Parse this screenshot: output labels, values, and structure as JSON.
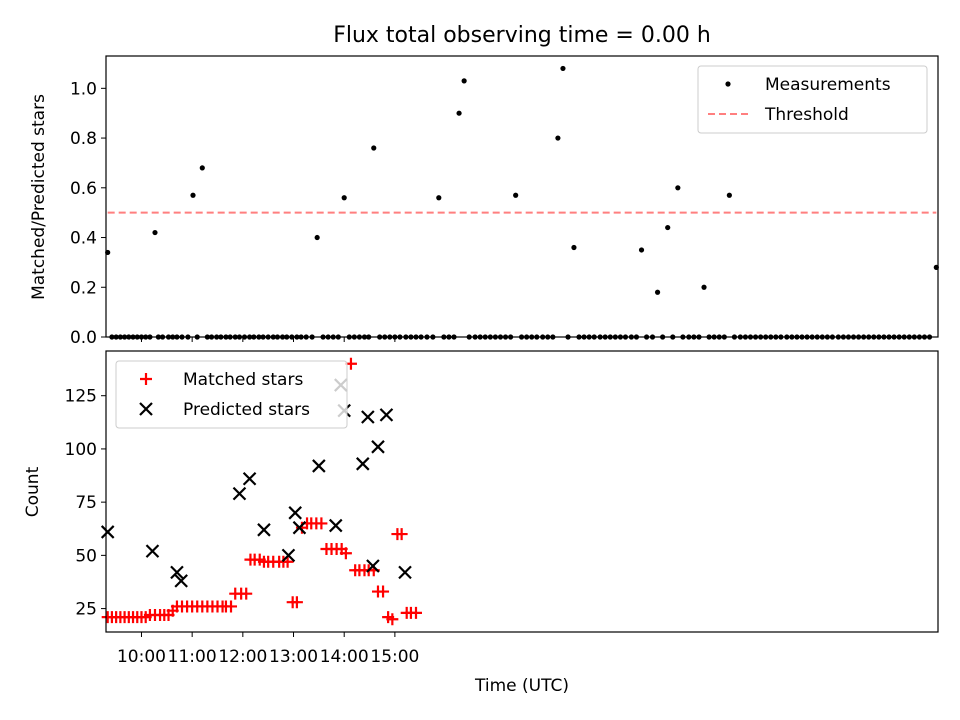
{
  "chart_data": [
    {
      "type": "scatter",
      "title": "Flux total observing time = 0.00 h",
      "xlabel": "",
      "ylabel": "Matched/Predicted stars",
      "xlim": [
        558,
        1543
      ],
      "ylim": [
        0,
        1.13
      ],
      "yticks": [
        0.0,
        0.2,
        0.4,
        0.6,
        0.8,
        1.0
      ],
      "ytick_labels": [
        "0.0",
        "0.2",
        "0.4",
        "0.6",
        "0.8",
        "1.0"
      ],
      "threshold": {
        "name": "Threshold",
        "value": 0.5,
        "x_range": [
          560,
          1541
        ],
        "color": "#ff7f7f"
      },
      "legend": {
        "position": "top-right",
        "entries": [
          "Measurements",
          "Threshold"
        ]
      },
      "series": [
        {
          "name": "Measurements",
          "color": "#000000",
          "x": [
            560,
            565,
            570,
            575,
            580,
            585,
            590,
            595,
            600,
            605,
            610,
            616,
            620,
            625,
            632,
            637,
            642,
            648,
            655,
            661,
            666,
            672,
            678,
            683,
            689,
            694,
            700,
            705,
            711,
            716,
            722,
            728,
            733,
            739,
            744,
            750,
            756,
            761,
            767,
            772,
            778,
            784,
            789,
            795,
            802,
            808,
            815,
            821,
            827,
            833,
            840,
            846,
            852,
            858,
            864,
            869,
            875,
            882,
            888,
            894,
            900,
            906,
            913,
            919,
            925,
            931,
            938,
            945,
            952,
            958,
            964,
            970,
            976,
            982,
            988,
            995,
            1001,
            1007,
            1013,
            1019,
            1025,
            1031,
            1037,
            1043,
            1050,
            1056,
            1062,
            1068,
            1075,
            1081,
            1087,
            1093,
            1099,
            1105,
            1112,
            1118,
            1124,
            1130,
            1136,
            1143,
            1149,
            1155,
            1161,
            1167,
            1173,
            1180,
            1186,
            1192,
            1198,
            1205,
            1211,
            1217,
            1223,
            1229,
            1235,
            1241,
            1248,
            1254,
            1260,
            1266,
            1272,
            1278,
            1284,
            1290,
            1296,
            1302,
            1309,
            1315,
            1321,
            1327,
            1333,
            1339,
            1345,
            1351,
            1357,
            1364,
            1370,
            1376,
            1382,
            1388,
            1394,
            1400,
            1406,
            1412,
            1418,
            1425,
            1431,
            1437,
            1443,
            1449,
            1455,
            1461,
            1467,
            1473,
            1479,
            1485,
            1491,
            1497,
            1503,
            1509,
            1515,
            1521,
            1527,
            1533,
            1541
          ],
          "y": [
            0.34,
            0.0,
            0.0,
            0.0,
            0.0,
            0.0,
            0.0,
            0.0,
            0.0,
            0.0,
            0.0,
            0.42,
            0.0,
            0.0,
            0.0,
            0.0,
            0.0,
            0.0,
            0.0,
            0.57,
            0.0,
            0.68,
            0.0,
            0.0,
            0.0,
            0.0,
            0.0,
            0.0,
            0.0,
            0.0,
            0.0,
            0.0,
            0.0,
            0.0,
            0.0,
            0.0,
            0.0,
            0.0,
            0.0,
            0.0,
            0.0,
            0.0,
            0.0,
            0.0,
            0.0,
            0.4,
            0.0,
            0.0,
            0.0,
            0.0,
            0.56,
            0.0,
            0.0,
            0.0,
            0.0,
            0.0,
            0.76,
            0.0,
            0.0,
            0.0,
            0.0,
            0.0,
            0.0,
            0.0,
            0.0,
            0.0,
            0.0,
            0.0,
            0.56,
            0.0,
            0.0,
            0.0,
            0.9,
            1.03,
            0.0,
            0.0,
            0.0,
            0.0,
            0.0,
            0.0,
            0.0,
            0.0,
            0.0,
            0.57,
            0.0,
            0.0,
            0.0,
            0.0,
            0.0,
            0.0,
            0.0,
            0.8,
            1.08,
            0.0,
            0.36,
            0.0,
            0.0,
            0.0,
            0.0,
            0.0,
            0.0,
            0.0,
            0.0,
            0.0,
            0.0,
            0.0,
            0.0,
            0.35,
            0.0,
            0.0,
            0.18,
            0.0,
            0.44,
            0.0,
            0.6,
            0.0,
            0.0,
            0.0,
            0.0,
            0.2,
            0.0,
            0.0,
            0.0,
            0.0,
            0.57,
            0.0,
            0.0,
            0.0,
            0.0,
            0.0,
            0.0,
            0.0,
            0.0,
            0.0,
            0.0,
            0.0,
            0.0,
            0.0,
            0.0,
            0.0,
            0.0,
            0.0,
            0.0,
            0.0,
            0.0,
            0.0,
            0.0,
            0.0,
            0.0,
            0.0,
            0.0,
            0.0,
            0.0,
            0.0,
            0.0,
            0.0,
            0.0,
            0.0,
            0.0,
            0.0,
            0.0,
            0.0,
            0.0,
            0.0,
            0.28
          ]
        }
      ]
    },
    {
      "type": "scatter",
      "title": "",
      "xlabel": "Time (UTC)",
      "ylabel": "Count",
      "xlim": [
        558,
        1543
      ],
      "ylim": [
        14,
        146
      ],
      "yticks": [
        25,
        50,
        75,
        100,
        125
      ],
      "ytick_labels": [
        "25",
        "50",
        "75",
        "100",
        "125"
      ],
      "xticks": [
        600,
        660,
        720,
        780,
        840,
        900
      ],
      "xtick_labels": [
        "10:00",
        "11:00",
        "12:00",
        "13:00",
        "14:00",
        "15:00"
      ],
      "legend": {
        "position": "top-left",
        "entries": [
          "Matched stars",
          "Predicted stars"
        ]
      },
      "series": [
        {
          "name": "Matched stars",
          "marker": "plus",
          "color": "#ff0000",
          "x": [
            560,
            565,
            570,
            575,
            580,
            585,
            590,
            595,
            600,
            605,
            610,
            616,
            622,
            627,
            632,
            637,
            642,
            648,
            654,
            660,
            666,
            672,
            678,
            684,
            690,
            696,
            700,
            706,
            711,
            718,
            724,
            729,
            734,
            740,
            745,
            750,
            756,
            763,
            768,
            773,
            779,
            784,
            790,
            796,
            801,
            807,
            813,
            819,
            825,
            831,
            837,
            842,
            848,
            853,
            858,
            864,
            869,
            875,
            880,
            886,
            892,
            897,
            903,
            908,
            914,
            919,
            925
          ],
          "y": [
            21,
            21,
            21,
            21,
            21,
            21,
            21,
            21,
            21,
            21,
            22,
            22,
            22,
            22,
            22,
            24,
            26,
            26,
            26,
            26,
            26,
            26,
            26,
            26,
            26,
            26,
            26,
            26,
            32,
            32,
            32,
            48,
            48,
            48,
            47,
            47,
            47,
            47,
            47,
            47,
            28,
            28,
            63,
            65,
            65,
            65,
            65,
            53,
            53,
            53,
            53,
            51,
            140,
            43,
            43,
            43,
            43,
            43,
            33,
            33,
            21,
            20,
            60,
            60,
            23,
            23,
            23
          ]
        },
        {
          "name": "Predicted stars",
          "marker": "x",
          "color": "#000000",
          "x": [
            560,
            613,
            642,
            647,
            716,
            728,
            745,
            774,
            782,
            787,
            810,
            830,
            836,
            840,
            862,
            868,
            874,
            880,
            890,
            912
          ],
          "y": [
            61,
            52,
            42,
            38,
            79,
            86,
            62,
            50,
            70,
            63,
            92,
            64,
            130,
            118,
            93,
            115,
            45,
            101,
            116,
            42
          ]
        }
      ]
    }
  ]
}
